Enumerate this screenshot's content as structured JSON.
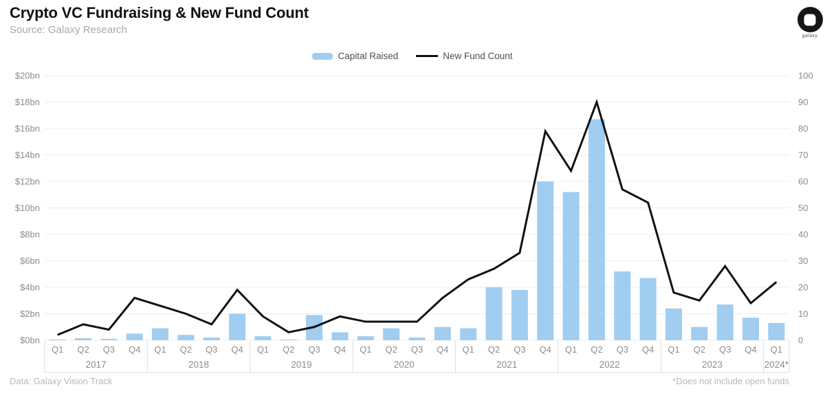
{
  "header": {
    "title": "Crypto VC Fundraising & New Fund Count",
    "source": "Source: Galaxy Research",
    "logo_text": "galaxy"
  },
  "legend": [
    {
      "label": "Capital Raised",
      "swatch": "bar",
      "color": "#a0cdf0"
    },
    {
      "label": "New Fund Count",
      "swatch": "line",
      "color": "#111111"
    }
  ],
  "footer": {
    "data_note": "Data: Galaxy Vision Track",
    "asterisk_note": "*Does not include open funds"
  },
  "chart_data": {
    "type": "combo-bar-line",
    "title": "Crypto VC Fundraising & New Fund Count",
    "grid": true,
    "legend_position": "top-center",
    "categories": [
      {
        "year": "2017",
        "quarters": [
          "Q1",
          "Q2",
          "Q3",
          "Q4"
        ]
      },
      {
        "year": "2018",
        "quarters": [
          "Q1",
          "Q2",
          "Q3",
          "Q4"
        ]
      },
      {
        "year": "2019",
        "quarters": [
          "Q1",
          "Q2",
          "Q3",
          "Q4"
        ]
      },
      {
        "year": "2020",
        "quarters": [
          "Q1",
          "Q2",
          "Q3",
          "Q4"
        ]
      },
      {
        "year": "2021",
        "quarters": [
          "Q1",
          "Q2",
          "Q3",
          "Q4"
        ]
      },
      {
        "year": "2022",
        "quarters": [
          "Q1",
          "Q2",
          "Q3",
          "Q4"
        ]
      },
      {
        "year": "2023",
        "quarters": [
          "Q1",
          "Q2",
          "Q3",
          "Q4"
        ]
      },
      {
        "year": "2024*",
        "quarters": [
          "Q1"
        ]
      }
    ],
    "left_axis": {
      "label": "Capital Raised ($bn)",
      "min": 0,
      "max": 20,
      "ticks_top_to_bottom": [
        "$20bn",
        "$18bn",
        "$16bn",
        "$14bn",
        "$12bn",
        "$10bn",
        "$8bn",
        "$6bn",
        "$4bn",
        "$2bn",
        "$0bn"
      ]
    },
    "right_axis": {
      "label": "New Fund Count",
      "min": 0,
      "max": 100,
      "ticks_top_to_bottom": [
        "100",
        "90",
        "80",
        "70",
        "60",
        "50",
        "40",
        "30",
        "20",
        "10",
        "0"
      ]
    },
    "series": [
      {
        "name": "Capital Raised",
        "type": "bar",
        "axis": "left",
        "unit": "$bn",
        "color": "#a0cdf0",
        "values": [
          0.05,
          0.15,
          0.1,
          0.5,
          0.9,
          0.4,
          0.2,
          2.0,
          0.3,
          0.05,
          1.9,
          0.6,
          0.3,
          0.9,
          0.2,
          1.0,
          0.9,
          4.0,
          3.8,
          12.0,
          11.2,
          16.7,
          5.2,
          4.7,
          2.4,
          1.0,
          2.7,
          1.7,
          1.3
        ]
      },
      {
        "name": "New Fund Count",
        "type": "line",
        "axis": "right",
        "unit": "funds",
        "color": "#111111",
        "values": [
          2,
          6,
          4,
          16,
          13,
          10,
          6,
          19,
          9,
          3,
          5,
          9,
          7,
          7,
          7,
          16,
          23,
          27,
          33,
          79,
          64,
          90,
          57,
          52,
          18,
          15,
          28,
          14,
          22
        ]
      }
    ],
    "style": {
      "grid_color": "#ececec",
      "axis_text_color": "#8c8c8c",
      "year_box_border_color": "#dedede"
    }
  }
}
